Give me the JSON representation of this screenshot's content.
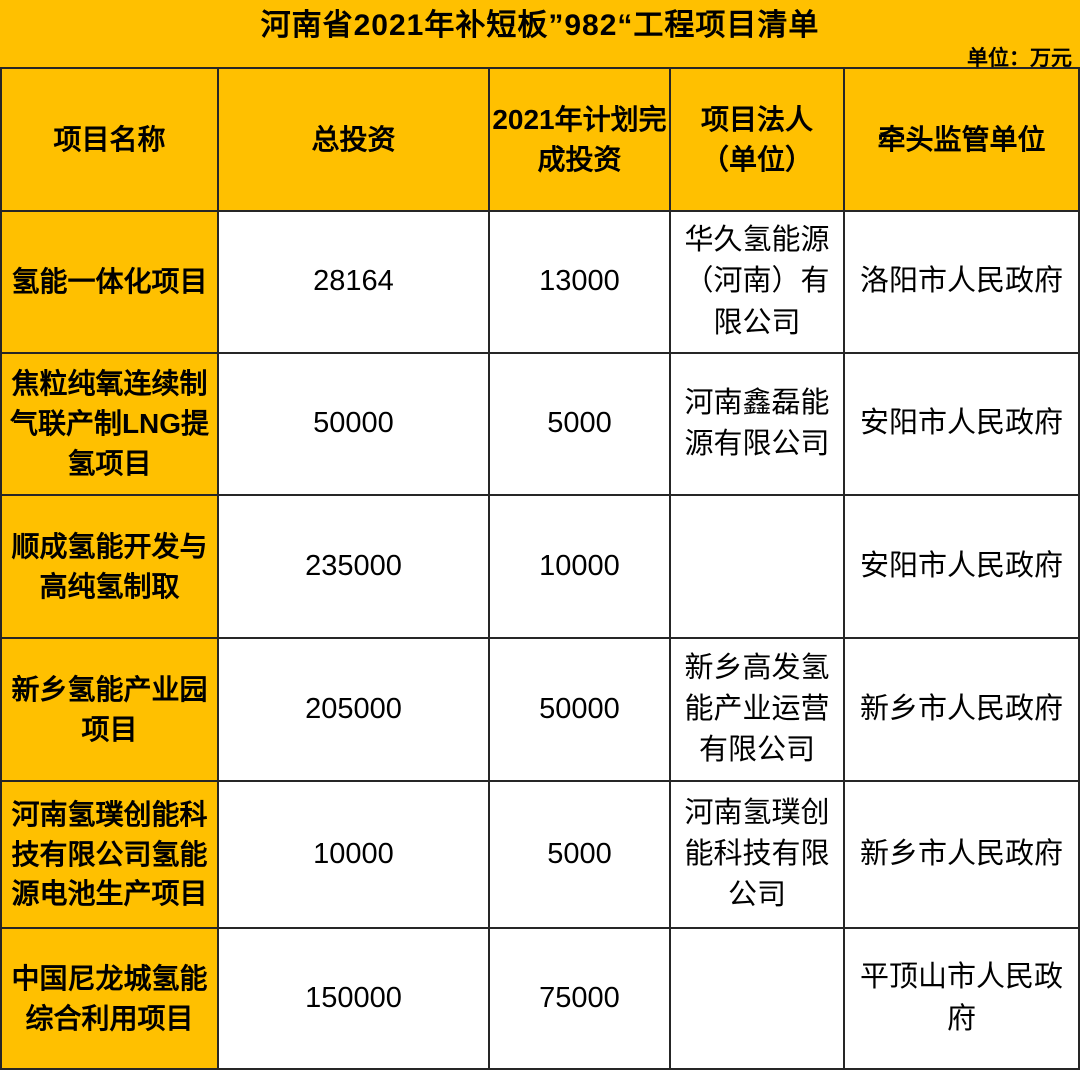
{
  "title": "河南省2021年补短板”982“工程项目清单",
  "unit_label": "单位：万元",
  "colors": {
    "accent_yellow": "#FFC000",
    "grid_border": "#262626",
    "text": "#000000",
    "body_cell_bg": "#FFFFFF"
  },
  "table": {
    "headers": [
      "项目名称",
      "总投资",
      "2021年计划完\n成投资",
      "项目法人\n（单位）",
      "牵头监管单位"
    ],
    "rows": [
      {
        "name": "氢能一体化项目",
        "total_investment": "28164",
        "planned_2021": "13000",
        "legal_entity": "华久氢能源\n（河南）有\n限公司",
        "supervisor": "洛阳市人民政府"
      },
      {
        "name": "焦粒纯氧连续制\n气联产制LNG提\n氢项目",
        "total_investment": "50000",
        "planned_2021": "5000",
        "legal_entity": "河南鑫磊能\n源有限公司",
        "supervisor": "安阳市人民政府"
      },
      {
        "name": "顺成氢能开发与\n高纯氢制取",
        "total_investment": "235000",
        "planned_2021": "10000",
        "legal_entity": "",
        "supervisor": "安阳市人民政府"
      },
      {
        "name": "新乡氢能产业园\n项目",
        "total_investment": "205000",
        "planned_2021": "50000",
        "legal_entity": "新乡高发氢\n能产业运营\n有限公司",
        "supervisor": "新乡市人民政府"
      },
      {
        "name": "河南氢璞创能科\n技有限公司氢能\n源电池生产项目",
        "total_investment": "10000",
        "planned_2021": "5000",
        "legal_entity": "河南氢璞创\n能科技有限\n公司",
        "supervisor": "新乡市人民政府"
      },
      {
        "name": "中国尼龙城氢能\n综合利用项目",
        "total_investment": "150000",
        "planned_2021": "75000",
        "legal_entity": "",
        "supervisor": "平顶山市人民政府"
      }
    ]
  },
  "chart_data": {
    "type": "table",
    "title": "河南省2021年补短板”982“工程项目清单",
    "unit": "万元",
    "columns": [
      "项目名称",
      "总投资",
      "2021年计划完成投资",
      "项目法人（单位）",
      "牵头监管单位"
    ],
    "rows": [
      [
        "氢能一体化项目",
        28164,
        13000,
        "华久氢能源（河南）有限公司",
        "洛阳市人民政府"
      ],
      [
        "焦粒纯氧连续制气联产制LNG提氢项目",
        50000,
        5000,
        "河南鑫磊能源有限公司",
        "安阳市人民政府"
      ],
      [
        "顺成氢能开发与高纯氢制取",
        235000,
        10000,
        "",
        "安阳市人民政府"
      ],
      [
        "新乡氢能产业园项目",
        205000,
        50000,
        "新乡高发氢能产业运营有限公司",
        "新乡市人民政府"
      ],
      [
        "河南氢璞创能科技有限公司氢能源电池生产项目",
        10000,
        5000,
        "河南氢璞创能科技有限公司",
        "新乡市人民政府"
      ],
      [
        "中国尼龙城氢能综合利用项目",
        150000,
        75000,
        "",
        "平顶山市人民政府"
      ]
    ],
    "layout_hints": {
      "header_bg": "#FFC000",
      "first_column_bg": "#FFC000",
      "grid": true
    }
  }
}
